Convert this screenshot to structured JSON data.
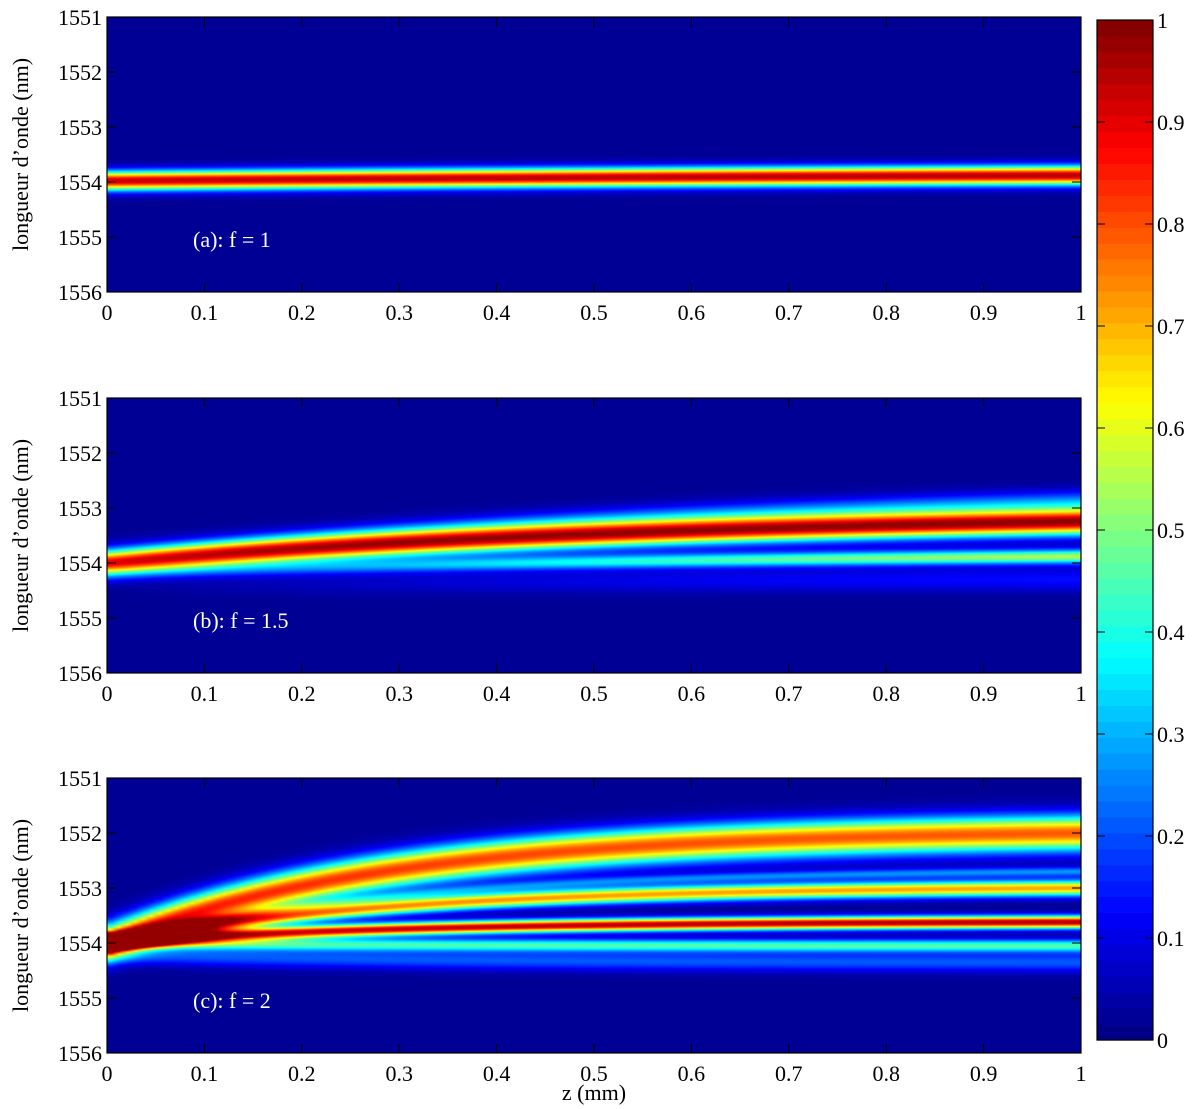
{
  "chart_data": {
    "type": "heatmap",
    "colormap": "jet",
    "colorbar": {
      "range": [
        0,
        1
      ],
      "ticks": [
        "0",
        "0.1",
        "0.2",
        "0.3",
        "0.4",
        "0.5",
        "0.6",
        "0.7",
        "0.8",
        "0.9",
        "1"
      ]
    },
    "panels": [
      {
        "annotation": "(a): f = 1",
        "ylabel": "longueur d’onde (nm)",
        "xlabel": "",
        "xlim": [
          0,
          1
        ],
        "ylim": [
          1556,
          1551
        ],
        "x_ticks": [
          "0",
          "0.1",
          "0.2",
          "0.3",
          "0.4",
          "0.5",
          "0.6",
          "0.7",
          "0.8",
          "0.9",
          "1"
        ],
        "y_ticks": [
          "1551",
          "1552",
          "1553",
          "1554",
          "1555",
          "1556"
        ],
        "bands": [
          {
            "center_start": 1553.98,
            "center_end": 1553.88,
            "curvature": 1.0,
            "width": 0.12,
            "amp_start": 0.95,
            "amp_end": 0.97
          }
        ]
      },
      {
        "annotation": "(b): f = 1.5",
        "ylabel": "longueur d’onde (nm)",
        "xlabel": "",
        "xlim": [
          0,
          1
        ],
        "ylim": [
          1556,
          1551
        ],
        "x_ticks": [
          "0",
          "0.1",
          "0.2",
          "0.3",
          "0.4",
          "0.5",
          "0.6",
          "0.7",
          "0.8",
          "0.9",
          "1"
        ],
        "y_ticks": [
          "1551",
          "1552",
          "1553",
          "1554",
          "1555",
          "1556"
        ],
        "bands": [
          {
            "center_start": 1554.0,
            "center_end": 1553.25,
            "curvature": 1.6,
            "width": 0.16,
            "amp_start": 0.92,
            "amp_end": 1.0
          },
          {
            "center_start": 1554.2,
            "center_end": 1553.88,
            "curvature": 1.6,
            "width": 0.09,
            "amp_start": 0.0,
            "amp_end": 0.55
          },
          {
            "center_start": 1553.9,
            "center_end": 1552.9,
            "curvature": 1.6,
            "width": 0.15,
            "amp_start": 0.0,
            "amp_end": 0.25
          },
          {
            "center_start": 1554.4,
            "center_end": 1554.3,
            "curvature": 1.6,
            "width": 0.15,
            "amp_start": 0.0,
            "amp_end": 0.12
          }
        ]
      },
      {
        "annotation": "(c): f = 2",
        "ylabel": "longueur d’onde (nm)",
        "xlabel": "z (mm)",
        "xlim": [
          0,
          1
        ],
        "ylim": [
          1556,
          1551
        ],
        "x_ticks": [
          "0",
          "0.1",
          "0.2",
          "0.3",
          "0.4",
          "0.5",
          "0.6",
          "0.7",
          "0.8",
          "0.9",
          "1"
        ],
        "y_ticks": [
          "1551",
          "1552",
          "1553",
          "1554",
          "1555",
          "1556"
        ],
        "bands": [
          {
            "center_start": 1554.0,
            "center_end": 1552.0,
            "curvature": 3.5,
            "width": 0.22,
            "amp_start": 0.9,
            "amp_end": 0.8
          },
          {
            "center_start": 1554.0,
            "center_end": 1553.0,
            "curvature": 3.5,
            "width": 0.1,
            "amp_start": 0.8,
            "amp_end": 0.72
          },
          {
            "center_start": 1554.0,
            "center_end": 1553.62,
            "curvature": 3.5,
            "width": 0.08,
            "amp_start": 0.9,
            "amp_end": 0.98
          },
          {
            "center_start": 1554.0,
            "center_end": 1554.05,
            "curvature": 3.5,
            "width": 0.08,
            "amp_start": 0.4,
            "amp_end": 0.45
          },
          {
            "center_start": 1554.2,
            "center_end": 1554.35,
            "curvature": 3.5,
            "width": 0.12,
            "amp_start": 0.2,
            "amp_end": 0.2
          },
          {
            "center_start": 1554.0,
            "center_end": 1552.7,
            "curvature": 3.5,
            "width": 0.06,
            "amp_start": 0.0,
            "amp_end": 0.25
          }
        ]
      }
    ]
  }
}
